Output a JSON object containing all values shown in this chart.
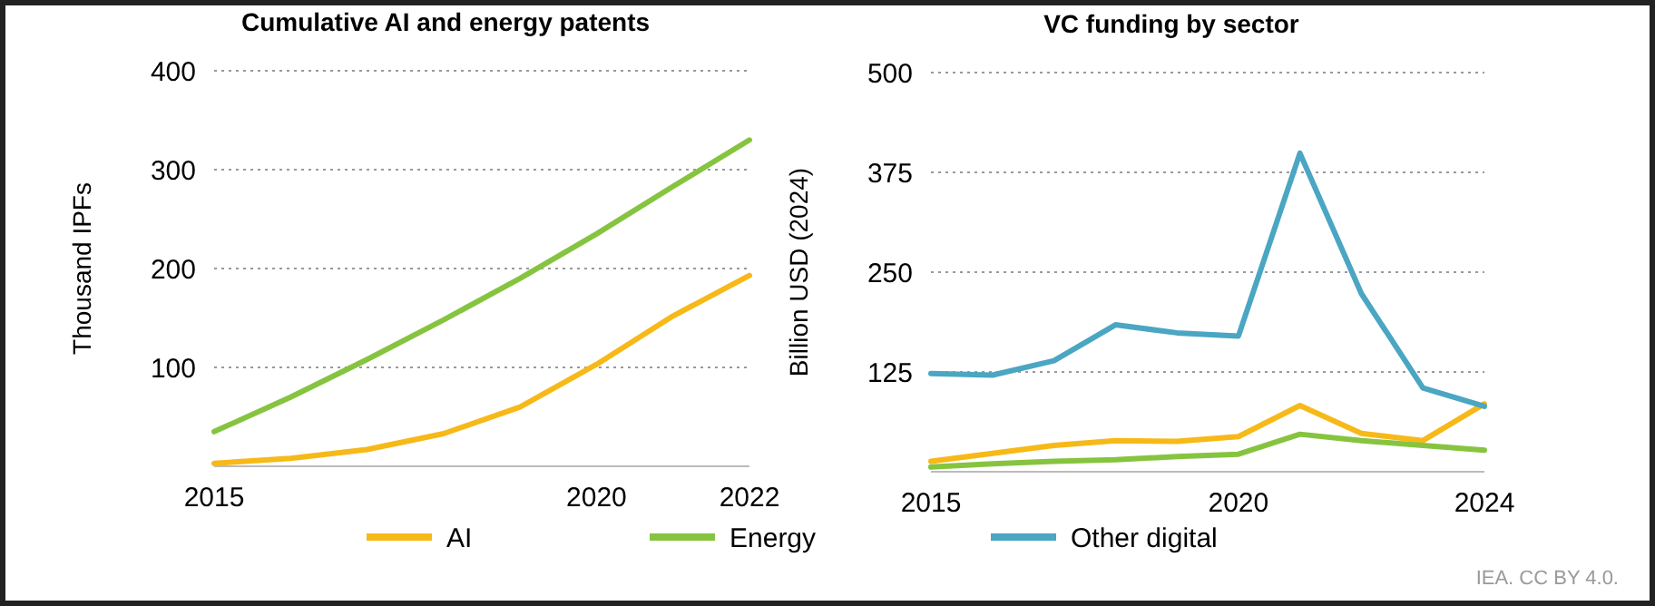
{
  "chart_data": [
    {
      "type": "line",
      "title": "Cumulative AI and energy patents",
      "ylabel": "Thousand IPFs",
      "x": [
        2015,
        2016,
        2017,
        2018,
        2019,
        2020,
        2021,
        2022
      ],
      "xlim": [
        2015,
        2022
      ],
      "xticks": [
        2015,
        2020,
        2022
      ],
      "ylim": [
        0,
        400
      ],
      "yticks": [
        100,
        200,
        300,
        400
      ],
      "grid": "y",
      "legend": false,
      "series": [
        {
          "color": "#f6b918",
          "values": [
            3,
            8,
            17,
            33,
            60,
            103,
            152,
            193
          ]
        },
        {
          "color": "#86c440",
          "values": [
            35,
            70,
            108,
            148,
            190,
            235,
            283,
            330
          ]
        }
      ]
    },
    {
      "type": "line",
      "title": "VC funding by sector",
      "ylabel": "Billion USD (2024)",
      "x": [
        2015,
        2016,
        2017,
        2018,
        2019,
        2020,
        2021,
        2022,
        2023,
        2024
      ],
      "xlim": [
        2015,
        2024
      ],
      "xticks": [
        2015,
        2020,
        2024
      ],
      "ylim": [
        0,
        500
      ],
      "yticks": [
        125,
        250,
        375,
        500
      ],
      "grid": "y",
      "legend": "bottom",
      "annotations": [
        "IEA. CC BY 4.0."
      ],
      "series": [
        {
          "name": "AI",
          "color": "#f6b918",
          "values": [
            13,
            23,
            33,
            39,
            38,
            44,
            83,
            48,
            39,
            85
          ]
        },
        {
          "name": "Energy",
          "color": "#86c440",
          "values": [
            6,
            10,
            13,
            15,
            19,
            22,
            47,
            39,
            33,
            27
          ]
        },
        {
          "name": "Other digital",
          "color": "#4aa6c2",
          "values": [
            123,
            121,
            139,
            184,
            174,
            170,
            399,
            223,
            105,
            82
          ]
        }
      ]
    }
  ]
}
